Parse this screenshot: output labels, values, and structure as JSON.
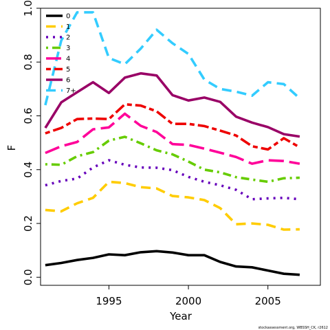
{
  "chart_data": {
    "type": "line",
    "xlabel": "Year",
    "ylabel": "F",
    "xlim": [
      1990.7,
      2008.3
    ],
    "ylim": [
      -0.03,
      1.0
    ],
    "xticks": [
      "1995",
      "2000",
      "2005"
    ],
    "yticks": [
      "0.0",
      "0.2",
      "0.4",
      "0.6",
      "0.8",
      "1.0"
    ],
    "x": [
      1991,
      1992,
      1993,
      1994,
      1995,
      1996,
      1997,
      1998,
      1999,
      2000,
      2001,
      2002,
      2003,
      2004,
      2005,
      2006,
      2007
    ],
    "legend_position": "top-left",
    "series": [
      {
        "name": "0",
        "color": "#000000",
        "dash": "solid",
        "values": [
          0.045,
          0.053,
          0.064,
          0.072,
          0.085,
          0.082,
          0.093,
          0.097,
          0.092,
          0.082,
          0.082,
          0.057,
          0.04,
          0.037,
          0.025,
          0.013,
          0.009
        ]
      },
      {
        "name": "1",
        "color": "#ffcc00",
        "dash": "dashed",
        "values": [
          0.25,
          0.245,
          0.275,
          0.295,
          0.355,
          0.35,
          0.335,
          0.33,
          0.302,
          0.297,
          0.287,
          0.257,
          0.197,
          0.2,
          0.195,
          0.177,
          0.178
        ]
      },
      {
        "name": "2",
        "color": "#6600bb",
        "dash": "dotted",
        "values": [
          0.342,
          0.358,
          0.367,
          0.408,
          0.435,
          0.418,
          0.408,
          0.407,
          0.398,
          0.373,
          0.355,
          0.342,
          0.325,
          0.29,
          0.293,
          0.295,
          0.29
        ]
      },
      {
        "name": "3",
        "color": "#66cc00",
        "dash": "dotdash",
        "values": [
          0.42,
          0.418,
          0.45,
          0.465,
          0.508,
          0.522,
          0.498,
          0.472,
          0.457,
          0.43,
          0.4,
          0.39,
          0.372,
          0.363,
          0.355,
          0.368,
          0.37
        ]
      },
      {
        "name": "4",
        "color": "#ff0099",
        "dash": "longdash",
        "values": [
          0.462,
          0.487,
          0.503,
          0.55,
          0.557,
          0.608,
          0.563,
          0.54,
          0.495,
          0.492,
          0.478,
          0.463,
          0.447,
          0.422,
          0.435,
          0.432,
          0.422
        ]
      },
      {
        "name": "5",
        "color": "#ee0000",
        "dash": "twodash",
        "values": [
          0.535,
          0.555,
          0.588,
          0.59,
          0.588,
          0.643,
          0.638,
          0.617,
          0.57,
          0.57,
          0.562,
          0.545,
          0.527,
          0.487,
          0.475,
          0.517,
          0.483
        ]
      },
      {
        "name": "6",
        "color": "#990066",
        "dash": "solid",
        "values": [
          0.555,
          0.65,
          0.688,
          0.725,
          0.685,
          0.742,
          0.758,
          0.75,
          0.677,
          0.657,
          0.668,
          0.652,
          0.597,
          0.575,
          0.558,
          0.532,
          0.523
        ]
      },
      {
        "name": "7+",
        "color": "#33ccff",
        "dash": "dashed",
        "values": [
          0.64,
          0.88,
          0.985,
          0.985,
          0.815,
          0.792,
          0.85,
          0.92,
          0.87,
          0.83,
          0.735,
          0.7,
          0.69,
          0.675,
          0.725,
          0.718,
          0.665
        ]
      }
    ]
  },
  "footer": {
    "text": "stockassessment.org, WBSSH_CK, r2612"
  }
}
